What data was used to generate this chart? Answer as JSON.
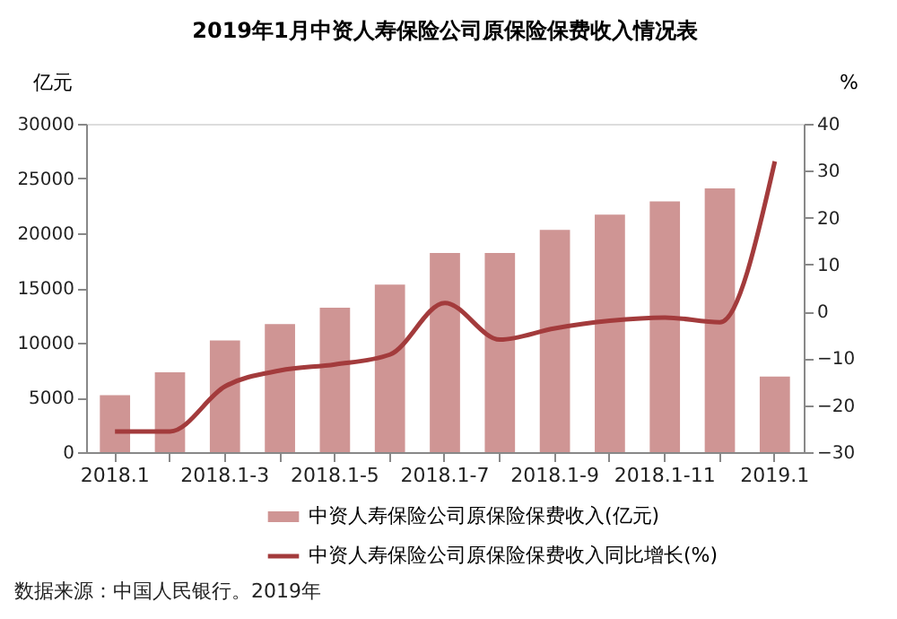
{
  "chart_data": {
    "type": "bar",
    "title": "2019年1月中资人寿保险公司原保险保费收入情况表",
    "categories": [
      "2018.1",
      null,
      "2018.1-3",
      null,
      "2018.1-5",
      null,
      "2018.1-7",
      null,
      "2018.1-9",
      null,
      "2018.1-11",
      null,
      "2019.1"
    ],
    "series": [
      {
        "name": "中资人寿保险公司原保险保费收入(亿元)",
        "color": "#cf9594",
        "values": [
          5200,
          7300,
          10200,
          11700,
          13200,
          15300,
          18200,
          18200,
          20300,
          21700,
          22900,
          24100,
          6900
        ]
      },
      {
        "name": "中资人寿保险公司原保险保费收入同比增长(%)",
        "type": "line",
        "axis": "y2",
        "color": "#a33b3c",
        "values": [
          -25.6,
          -25.6,
          -16,
          -12.6,
          -11.3,
          -9.2,
          1.8,
          -6,
          -3.6,
          -2,
          -1.3,
          -2.3,
          32
        ]
      }
    ],
    "ylabel": "亿元",
    "y2label": "%",
    "ylim": [
      0,
      30000
    ],
    "yticks": [
      0,
      5000,
      10000,
      15000,
      20000,
      25000,
      30000
    ],
    "y2lim": [
      -30,
      40
    ],
    "y2ticks": [
      -30,
      -20,
      -10,
      0,
      10,
      20,
      30,
      40
    ],
    "grid": false,
    "legend": "bottom",
    "marker": "none",
    "line_style": "solid",
    "annotations": [
      "数据来源：中国人民银行。2019年"
    ]
  }
}
